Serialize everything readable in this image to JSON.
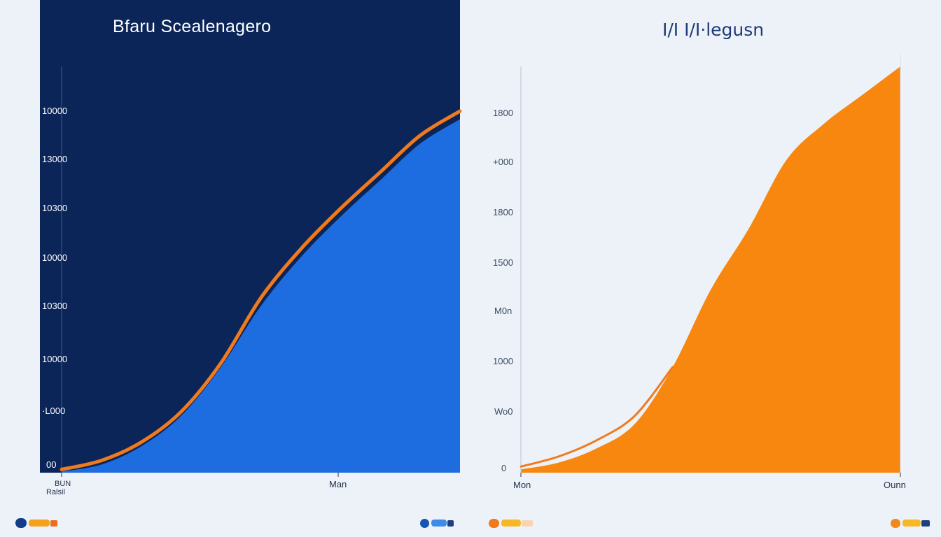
{
  "chart_data": [
    {
      "type": "area",
      "title": "Bfaru Scealenagero",
      "xlabel": "Man",
      "ylabel": "",
      "y_tick_labels": [
        "10000",
        "13000",
        "10300",
        "10000",
        "10300",
        "10000",
        "·L000",
        "00"
      ],
      "x_tick_labels": [
        "Man"
      ],
      "x_start_labels": [
        "BUN",
        "Ralsil"
      ],
      "series": [
        {
          "name": "area",
          "color": "#1e6de0",
          "x": [
            0,
            0.1,
            0.2,
            0.3,
            0.4,
            0.5,
            0.6,
            0.7,
            0.8,
            0.9,
            1.0
          ],
          "values": [
            0.3,
            2,
            6.5,
            14,
            26,
            41,
            53,
            63,
            72,
            81,
            87
          ]
        },
        {
          "name": "line",
          "color": "#f07a1e",
          "x": [
            0,
            0.1,
            0.2,
            0.3,
            0.4,
            0.5,
            0.6,
            0.7,
            0.8,
            0.9,
            1.0
          ],
          "values": [
            0.8,
            3,
            7.5,
            15,
            27,
            43,
            55,
            65,
            74,
            83,
            89
          ]
        }
      ],
      "ylim": [
        0,
        100
      ],
      "xlim": [
        0,
        1
      ]
    },
    {
      "type": "area",
      "title": "I/I I/I·legusn",
      "xlabel": "",
      "ylabel": "",
      "y_tick_labels": [
        "1800",
        "+000",
        "1800",
        "1500",
        "M0n",
        "1000",
        "Wo0",
        "0"
      ],
      "x_tick_labels": [
        "Mon",
        "Ounn"
      ],
      "series": [
        {
          "name": "area",
          "color": "#f7870f",
          "x": [
            0,
            0.1,
            0.2,
            0.3,
            0.4,
            0.5,
            0.6,
            0.7,
            0.8,
            0.9,
            1.0
          ],
          "values": [
            0.8,
            2.5,
            6,
            12,
            26,
            45,
            60,
            77,
            86,
            93,
            100
          ]
        },
        {
          "name": "line",
          "color": "#f07a1e",
          "x": [
            0,
            0.1,
            0.2,
            0.3,
            0.4
          ],
          "values": [
            1.5,
            4,
            8,
            14,
            26
          ]
        }
      ],
      "ylim": [
        0,
        100
      ],
      "xlim": [
        0,
        1
      ]
    }
  ],
  "legends": {
    "left_a": {
      "dot": "#123d8a",
      "bar": "#f5a11e",
      "tail": "#ef6a1a"
    },
    "left_b": {
      "dot": "#1456b0",
      "bar": "#3f8be8",
      "tail": "#1d3f7d"
    },
    "right_a": {
      "dot": "#f07a1e",
      "bar": "#f6b827",
      "tail": "#f8d5b0"
    },
    "right_b": {
      "dot": "#f08a1e",
      "bar": "#f6b827",
      "tail": "#1d3f7d"
    }
  }
}
